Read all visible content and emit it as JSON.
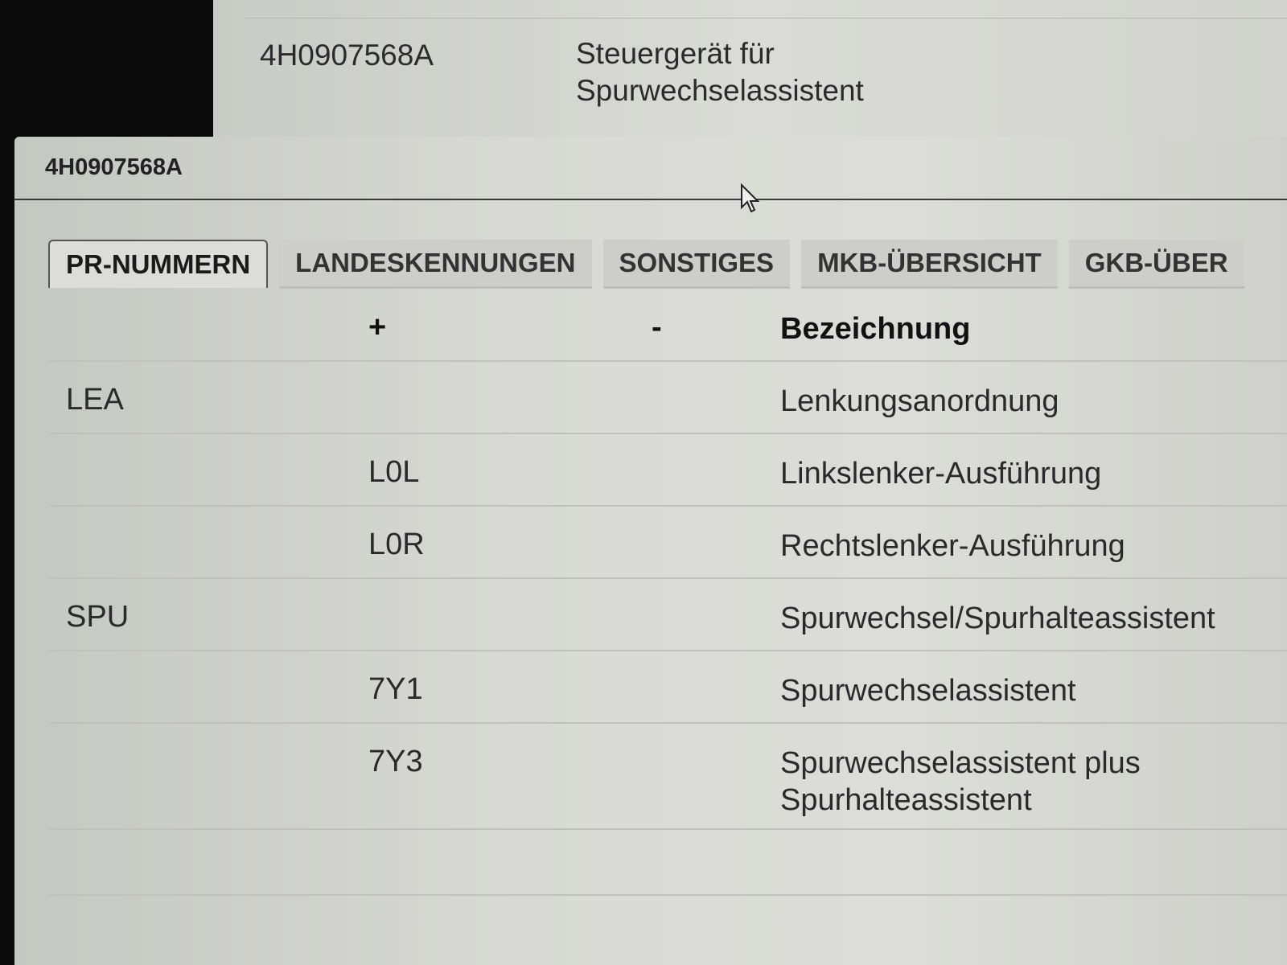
{
  "background_row": {
    "part_number": "4H0907568A",
    "description_line1": "Steuergerät für",
    "description_line2": "Spurwechselassistent"
  },
  "dialog": {
    "title": "4H0907568A",
    "tabs": [
      {
        "label": "PR-NUMMERN",
        "active": true
      },
      {
        "label": "LANDESKENNUNGEN",
        "active": false
      },
      {
        "label": "SONSTIGES",
        "active": false
      },
      {
        "label": "MKB-ÜBERSICHT",
        "active": false
      },
      {
        "label": "GKB-ÜBER",
        "active": false
      }
    ],
    "table": {
      "headers": {
        "family": "",
        "plus": "+",
        "minus": "-",
        "description": "Bezeichnung"
      },
      "rows": [
        {
          "family": "LEA",
          "plus": "",
          "minus": "",
          "description": "Lenkungsanordnung"
        },
        {
          "family": "",
          "plus": "L0L",
          "minus": "",
          "description": "Linkslenker-Ausführung"
        },
        {
          "family": "",
          "plus": "L0R",
          "minus": "",
          "description": "Rechtslenker-Ausführung"
        },
        {
          "family": "SPU",
          "plus": "",
          "minus": "",
          "description": "Spurwechsel/Spurhalteassistent"
        },
        {
          "family": "",
          "plus": "7Y1",
          "minus": "",
          "description": "Spurwechselassistent"
        },
        {
          "family": "",
          "plus": "7Y3",
          "minus": "",
          "description": "Spurwechselassistent plus",
          "description_line2": "Spurhalteassistent"
        }
      ]
    }
  }
}
